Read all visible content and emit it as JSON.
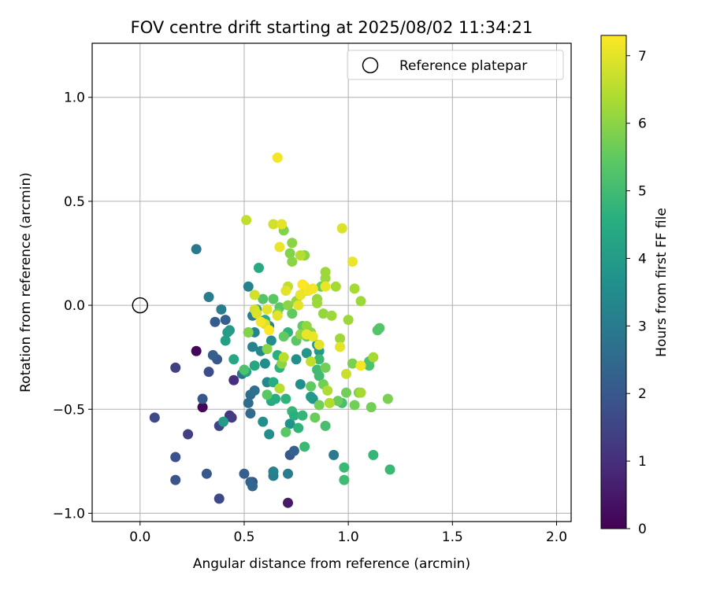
{
  "chart_data": {
    "type": "scatter",
    "title": "FOV centre drift starting at 2025/08/02 11:34:21",
    "xlabel": "Angular distance from reference (arcmin)",
    "ylabel": "Rotation from reference (arcmin)",
    "xlim": [
      -0.23,
      2.07
    ],
    "ylim": [
      -1.04,
      1.26
    ],
    "xticks": [
      0.0,
      0.5,
      1.0,
      1.5,
      2.0
    ],
    "xtick_labels": [
      "0.0",
      "0.5",
      "1.0",
      "1.5",
      "2.0"
    ],
    "yticks": [
      -1.0,
      -0.5,
      0.0,
      0.5,
      1.0
    ],
    "ytick_labels": [
      "−1.0",
      "−0.5",
      "0.0",
      "0.5",
      "1.0"
    ],
    "grid": true,
    "legend": {
      "placement": "top-right",
      "entries": [
        {
          "label": "Reference platepar",
          "marker": "open-circle"
        }
      ]
    },
    "reference_point": {
      "x": 0.0,
      "y": 0.0
    },
    "colorbar": {
      "label": "Hours from first FF file",
      "colormap": "viridis",
      "range": [
        0,
        7.3
      ],
      "ticks": [
        0,
        1,
        2,
        3,
        4,
        5,
        6,
        7
      ],
      "tick_labels": [
        "0",
        "1",
        "2",
        "3",
        "4",
        "5",
        "6",
        "7"
      ]
    },
    "columns": [
      "x",
      "y",
      "hours"
    ],
    "points": [
      [
        0.27,
        -0.22,
        0.1
      ],
      [
        0.3,
        -0.49,
        0.1
      ],
      [
        0.71,
        -0.95,
        0.5
      ],
      [
        0.45,
        -0.36,
        1.0
      ],
      [
        0.43,
        -0.53,
        1.2
      ],
      [
        0.44,
        -0.54,
        1.3
      ],
      [
        0.23,
        -0.62,
        1.4
      ],
      [
        0.38,
        -0.58,
        1.5
      ],
      [
        0.38,
        -0.93,
        1.6
      ],
      [
        0.54,
        -0.85,
        1.7
      ],
      [
        0.17,
        -0.3,
        1.4
      ],
      [
        0.07,
        -0.54,
        1.6
      ],
      [
        0.33,
        -0.32,
        1.7
      ],
      [
        0.17,
        -0.73,
        1.8
      ],
      [
        0.17,
        -0.84,
        1.9
      ],
      [
        0.32,
        -0.81,
        2.0
      ],
      [
        0.3,
        -0.45,
        2.0
      ],
      [
        0.37,
        -0.26,
        2.0
      ],
      [
        0.35,
        -0.24,
        2.2
      ],
      [
        0.36,
        -0.08,
        2.1
      ],
      [
        0.41,
        -0.07,
        2.2
      ],
      [
        0.5,
        -0.81,
        2.2
      ],
      [
        0.53,
        -0.85,
        2.3
      ],
      [
        0.54,
        -0.87,
        2.4
      ],
      [
        0.53,
        -0.52,
        2.5
      ],
      [
        0.52,
        -0.47,
        2.6
      ],
      [
        0.53,
        -0.43,
        2.6
      ],
      [
        0.55,
        -0.41,
        2.7
      ],
      [
        0.49,
        -0.33,
        2.8
      ],
      [
        0.72,
        -0.72,
        2.0
      ],
      [
        0.74,
        -0.7,
        2.3
      ],
      [
        0.93,
        -0.72,
        3.0
      ],
      [
        0.64,
        -0.82,
        3.1
      ],
      [
        0.64,
        -0.8,
        3.2
      ],
      [
        0.71,
        -0.81,
        3.0
      ],
      [
        0.27,
        0.27,
        2.9
      ],
      [
        0.33,
        0.04,
        3.0
      ],
      [
        0.39,
        -0.02,
        3.1
      ],
      [
        0.52,
        0.09,
        3.2
      ],
      [
        0.54,
        -0.05,
        3.1
      ],
      [
        0.54,
        -0.2,
        3.2
      ],
      [
        0.55,
        -0.13,
        3.3
      ],
      [
        0.58,
        -0.22,
        3.4
      ],
      [
        0.62,
        -0.1,
        3.3
      ],
      [
        0.63,
        -0.17,
        3.5
      ],
      [
        0.61,
        -0.37,
        3.4
      ],
      [
        0.6,
        -0.28,
        3.5
      ],
      [
        0.59,
        -0.56,
        3.6
      ],
      [
        0.62,
        -0.62,
        3.6
      ],
      [
        0.72,
        -0.57,
        3.7
      ],
      [
        0.75,
        -0.26,
        3.6
      ],
      [
        0.77,
        -0.38,
        3.6
      ],
      [
        0.8,
        -0.23,
        3.8
      ],
      [
        0.83,
        -0.45,
        3.8
      ],
      [
        0.86,
        -0.22,
        3.9
      ],
      [
        0.85,
        -0.19,
        3.8
      ],
      [
        0.82,
        -0.44,
        3.9
      ],
      [
        0.43,
        -0.12,
        3.9
      ],
      [
        0.42,
        -0.13,
        4.0
      ],
      [
        0.4,
        -0.56,
        4.0
      ],
      [
        0.41,
        -0.17,
        4.1
      ],
      [
        0.45,
        -0.26,
        4.3
      ],
      [
        0.51,
        -0.32,
        4.2
      ],
      [
        0.52,
        -0.13,
        4.2
      ],
      [
        0.55,
        -0.29,
        4.3
      ],
      [
        0.56,
        -0.02,
        4.3
      ],
      [
        0.57,
        0.18,
        4.4
      ],
      [
        0.6,
        -0.07,
        4.4
      ],
      [
        0.63,
        -0.46,
        4.4
      ],
      [
        0.64,
        -0.37,
        4.5
      ],
      [
        0.65,
        -0.45,
        4.5
      ],
      [
        0.66,
        -0.24,
        4.6
      ],
      [
        0.67,
        -0.3,
        4.7
      ],
      [
        0.68,
        -0.25,
        4.6
      ],
      [
        0.7,
        -0.45,
        4.7
      ],
      [
        0.71,
        -0.13,
        4.7
      ],
      [
        0.73,
        -0.51,
        4.8
      ],
      [
        0.74,
        -0.53,
        4.6
      ],
      [
        0.76,
        -0.59,
        4.7
      ],
      [
        0.78,
        -0.53,
        4.8
      ],
      [
        0.79,
        -0.68,
        4.9
      ],
      [
        0.85,
        -0.31,
        5.0
      ],
      [
        0.86,
        -0.26,
        4.9
      ],
      [
        0.86,
        -0.34,
        5.0
      ],
      [
        0.89,
        -0.58,
        5.1
      ],
      [
        0.97,
        -0.47,
        5.1
      ],
      [
        0.98,
        -0.78,
        4.9
      ],
      [
        0.98,
        -0.84,
        5.0
      ],
      [
        1.12,
        -0.72,
        4.8
      ],
      [
        1.2,
        -0.79,
        4.9
      ],
      [
        1.1,
        -0.29,
        5.2
      ],
      [
        1.1,
        -0.27,
        5.2
      ],
      [
        1.14,
        -0.12,
        5.3
      ],
      [
        1.15,
        -0.11,
        5.3
      ],
      [
        0.5,
        -0.31,
        5.2
      ],
      [
        0.59,
        0.03,
        5.3
      ],
      [
        0.61,
        -0.43,
        5.4
      ],
      [
        0.64,
        0.03,
        5.4
      ],
      [
        0.67,
        -0.01,
        5.4
      ],
      [
        0.69,
        -0.15,
        5.5
      ],
      [
        0.7,
        -0.61,
        5.4
      ],
      [
        0.73,
        -0.04,
        5.5
      ],
      [
        0.75,
        -0.17,
        5.4
      ],
      [
        0.77,
        0.05,
        5.6
      ],
      [
        0.78,
        -0.1,
        5.5
      ],
      [
        0.8,
        -0.15,
        5.6
      ],
      [
        0.82,
        -0.39,
        5.5
      ],
      [
        0.84,
        -0.54,
        5.6
      ],
      [
        0.86,
        -0.48,
        5.7
      ],
      [
        0.87,
        0.09,
        5.6
      ],
      [
        0.88,
        -0.38,
        5.7
      ],
      [
        0.89,
        -0.3,
        5.7
      ],
      [
        0.91,
        -0.47,
        5.8
      ],
      [
        0.95,
        -0.46,
        5.6
      ],
      [
        0.99,
        -0.42,
        5.7
      ],
      [
        1.02,
        -0.28,
        5.8
      ],
      [
        1.03,
        -0.48,
        5.7
      ],
      [
        1.05,
        -0.42,
        5.8
      ],
      [
        1.11,
        -0.49,
        5.7
      ],
      [
        1.19,
        -0.45,
        5.8
      ],
      [
        0.52,
        -0.13,
        5.9
      ],
      [
        0.61,
        -0.21,
        6.0
      ],
      [
        0.66,
        -0.04,
        5.9
      ],
      [
        0.68,
        -0.28,
        6.0
      ],
      [
        0.69,
        0.36,
        5.9
      ],
      [
        0.71,
        0.0,
        6.0
      ],
      [
        0.72,
        0.25,
        5.9
      ],
      [
        0.73,
        0.21,
        6.0
      ],
      [
        0.73,
        0.3,
        6.0
      ],
      [
        0.75,
        0.02,
        6.1
      ],
      [
        0.77,
        -0.14,
        6.1
      ],
      [
        0.79,
        0.24,
        6.0
      ],
      [
        0.8,
        -0.1,
        6.1
      ],
      [
        0.82,
        -0.13,
        6.0
      ],
      [
        0.85,
        0.03,
        6.1
      ],
      [
        0.85,
        0.01,
        6.2
      ],
      [
        0.88,
        -0.04,
        6.1
      ],
      [
        0.89,
        0.16,
        6.2
      ],
      [
        0.89,
        0.13,
        6.2
      ],
      [
        0.92,
        -0.05,
        6.2
      ],
      [
        0.94,
        0.09,
        6.3
      ],
      [
        0.96,
        -0.16,
        6.2
      ],
      [
        1.0,
        -0.07,
        6.2
      ],
      [
        1.03,
        0.08,
        6.3
      ],
      [
        1.06,
        0.02,
        6.2
      ],
      [
        1.06,
        -0.42,
        6.3
      ],
      [
        1.12,
        -0.25,
        6.3
      ],
      [
        0.9,
        -0.41,
        6.4
      ],
      [
        0.91,
        -0.47,
        6.4
      ],
      [
        0.99,
        -0.33,
        6.7
      ],
      [
        0.67,
        -0.4,
        6.5
      ],
      [
        0.69,
        -0.25,
        6.5
      ],
      [
        0.71,
        0.09,
        6.6
      ],
      [
        0.77,
        0.24,
        6.5
      ],
      [
        0.8,
        0.07,
        6.6
      ],
      [
        0.82,
        -0.27,
        6.6
      ],
      [
        0.51,
        0.41,
        6.6
      ],
      [
        0.55,
        0.05,
        6.8
      ],
      [
        0.55,
        -0.02,
        6.8
      ],
      [
        0.56,
        -0.04,
        6.9
      ],
      [
        0.6,
        -0.09,
        6.9
      ],
      [
        0.61,
        -0.02,
        7.0
      ],
      [
        0.64,
        0.39,
        6.8
      ],
      [
        0.66,
        -0.05,
        7.0
      ],
      [
        0.67,
        0.28,
        7.1
      ],
      [
        0.68,
        0.39,
        7.0
      ],
      [
        0.7,
        0.07,
        7.0
      ],
      [
        0.76,
        0.0,
        7.0
      ],
      [
        0.77,
        0.05,
        7.1
      ],
      [
        0.79,
        0.09,
        7.0
      ],
      [
        0.8,
        -0.14,
        7.1
      ],
      [
        0.81,
        0.07,
        7.2
      ],
      [
        0.83,
        -0.15,
        7.1
      ],
      [
        0.83,
        0.08,
        7.2
      ],
      [
        0.86,
        -0.19,
        7.0
      ],
      [
        0.89,
        0.09,
        7.1
      ],
      [
        0.96,
        -0.2,
        7.0
      ],
      [
        0.97,
        0.37,
        6.9
      ],
      [
        1.02,
        0.21,
        7.1
      ],
      [
        1.06,
        -0.29,
        7.2
      ],
      [
        0.58,
        -0.08,
        7.2
      ],
      [
        0.62,
        -0.12,
        7.3
      ],
      [
        0.66,
        0.71,
        7.2
      ],
      [
        0.78,
        0.1,
        7.3
      ]
    ]
  }
}
